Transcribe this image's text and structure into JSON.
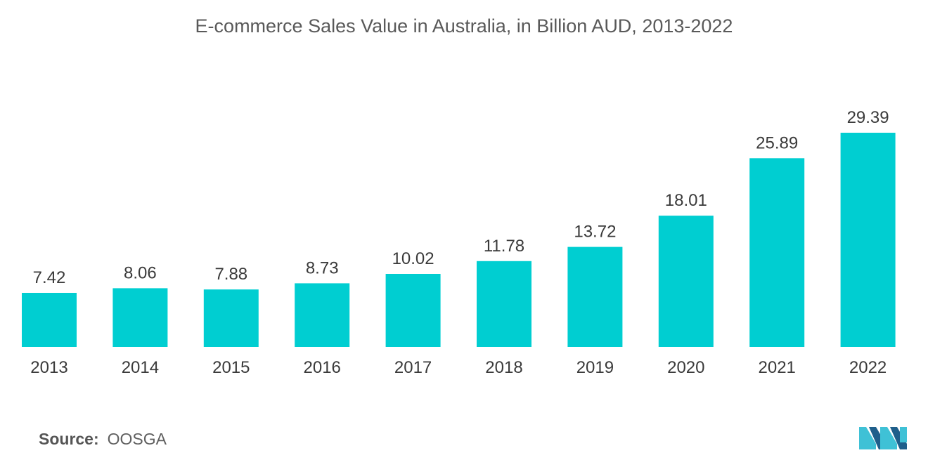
{
  "chart_data": {
    "type": "bar",
    "title": "E-commerce Sales Value in Australia, in Billion AUD, 2013-2022",
    "categories": [
      "2013",
      "2014",
      "2015",
      "2016",
      "2017",
      "2018",
      "2019",
      "2020",
      "2021",
      "2022"
    ],
    "values": [
      7.42,
      8.06,
      7.88,
      8.73,
      10.02,
      11.78,
      13.72,
      18.01,
      25.89,
      29.39
    ],
    "value_labels": [
      "7.42",
      "8.06",
      "7.88",
      "8.73",
      "10.02",
      "11.78",
      "13.72",
      "18.01",
      "25.89",
      "29.39"
    ],
    "xlabel": "",
    "ylabel": "",
    "ylim": [
      0,
      29.39
    ],
    "grid": false,
    "legend": "none",
    "bar_color": "#00CED1"
  },
  "source": {
    "label": "Source:",
    "value": "OOSGA"
  },
  "logo": {
    "icon": "mordor-intelligence-logo-icon",
    "color_dark": "#1F5F8B",
    "color_light": "#3FC1D6"
  }
}
